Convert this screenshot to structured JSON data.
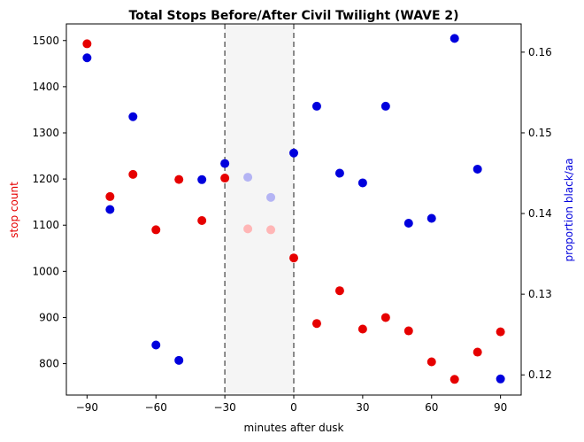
{
  "chart_data": {
    "type": "scatter",
    "title": "Total Stops Before/After Civil Twilight (WAVE 2)",
    "xlabel": "minutes after dusk",
    "ylabel_left": "stop count",
    "ylabel_right": "proportion black/aa",
    "xlim": [
      -99,
      99
    ],
    "ylim_left": [
      732,
      1536
    ],
    "ylim_right": [
      0.1175,
      0.1635
    ],
    "x_ticks": [
      -90,
      -60,
      -30,
      0,
      30,
      60,
      90
    ],
    "x_tick_labels": [
      "−90",
      "−60",
      "−30",
      "0",
      "30",
      "60",
      "90"
    ],
    "y_left_ticks": [
      800,
      900,
      1000,
      1100,
      1200,
      1300,
      1400,
      1500
    ],
    "y_right_ticks": [
      0.12,
      0.13,
      0.14,
      0.15,
      0.16
    ],
    "shaded_region": [
      -30,
      0
    ],
    "grid": false,
    "series": [
      {
        "axis": "left",
        "color": "#e60000",
        "points": [
          {
            "x": -90,
            "y": 1493
          },
          {
            "x": -80,
            "y": 1162
          },
          {
            "x": -70,
            "y": 1210
          },
          {
            "x": -60,
            "y": 1090
          },
          {
            "x": -50,
            "y": 1199
          },
          {
            "x": -40,
            "y": 1110
          },
          {
            "x": -30,
            "y": 1202
          },
          {
            "x": 0,
            "y": 1029
          },
          {
            "x": 10,
            "y": 887
          },
          {
            "x": 20,
            "y": 958
          },
          {
            "x": 30,
            "y": 875
          },
          {
            "x": 40,
            "y": 900
          },
          {
            "x": 50,
            "y": 871
          },
          {
            "x": 60,
            "y": 804
          },
          {
            "x": 70,
            "y": 766
          },
          {
            "x": 80,
            "y": 825
          },
          {
            "x": 90,
            "y": 869
          }
        ]
      },
      {
        "axis": "left",
        "color": "#ffb6b6",
        "points": [
          {
            "x": -20,
            "y": 1092
          },
          {
            "x": -10,
            "y": 1090
          }
        ]
      },
      {
        "axis": "right",
        "color": "#0000dd",
        "points": [
          {
            "x": -90,
            "y": 0.1593
          },
          {
            "x": -80,
            "y": 0.1405
          },
          {
            "x": -70,
            "y": 0.152
          },
          {
            "x": -60,
            "y": 0.1237
          },
          {
            "x": -50,
            "y": 0.1218
          },
          {
            "x": -40,
            "y": 0.1442
          },
          {
            "x": -30,
            "y": 0.1462
          },
          {
            "x": 0,
            "y": 0.1475
          },
          {
            "x": 10,
            "y": 0.1533
          },
          {
            "x": 20,
            "y": 0.145
          },
          {
            "x": 30,
            "y": 0.1438
          },
          {
            "x": 40,
            "y": 0.1533
          },
          {
            "x": 50,
            "y": 0.1388
          },
          {
            "x": 60,
            "y": 0.1394
          },
          {
            "x": 70,
            "y": 0.1617
          },
          {
            "x": 80,
            "y": 0.1455
          },
          {
            "x": 90,
            "y": 0.1195
          }
        ]
      },
      {
        "axis": "right",
        "color": "#b4b4f4",
        "points": [
          {
            "x": -20,
            "y": 0.1445
          },
          {
            "x": -10,
            "y": 0.142
          }
        ]
      }
    ]
  }
}
